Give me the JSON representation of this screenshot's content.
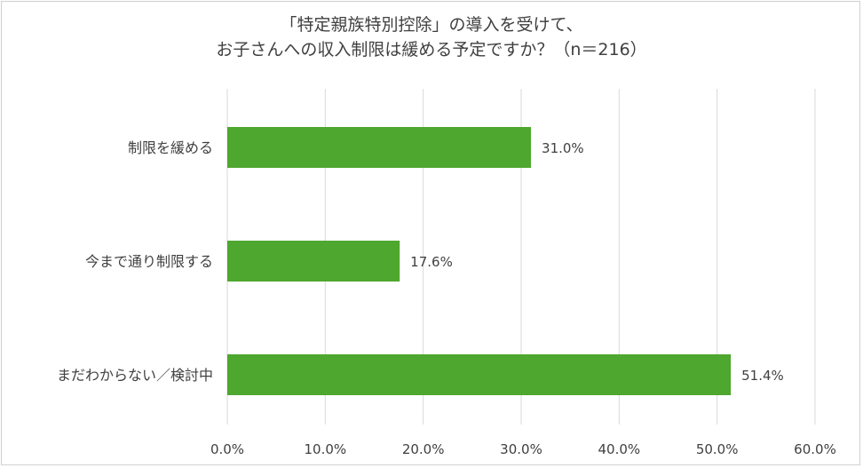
{
  "chart_data": {
    "type": "bar",
    "orientation": "horizontal",
    "title_lines": [
      "「特定親族特別控除」の導入を受けて、",
      "お子さんへの収入制限は緩める予定ですか？（n＝216）"
    ],
    "categories": [
      "制限を緩める",
      "今まで通り制限する",
      "まだわからない／検討中"
    ],
    "values": [
      31.0,
      17.6,
      51.4
    ],
    "value_labels": [
      "31.0%",
      "17.6%",
      "51.4%"
    ],
    "xlim": [
      0,
      60
    ],
    "ticks": [
      "0.0%",
      "10.0%",
      "20.0%",
      "30.0%",
      "40.0%",
      "50.0%",
      "60.0%"
    ],
    "grid": true,
    "legend": "none",
    "bar_color": "#4ea72e",
    "grid_color": "#d9d9d9"
  }
}
